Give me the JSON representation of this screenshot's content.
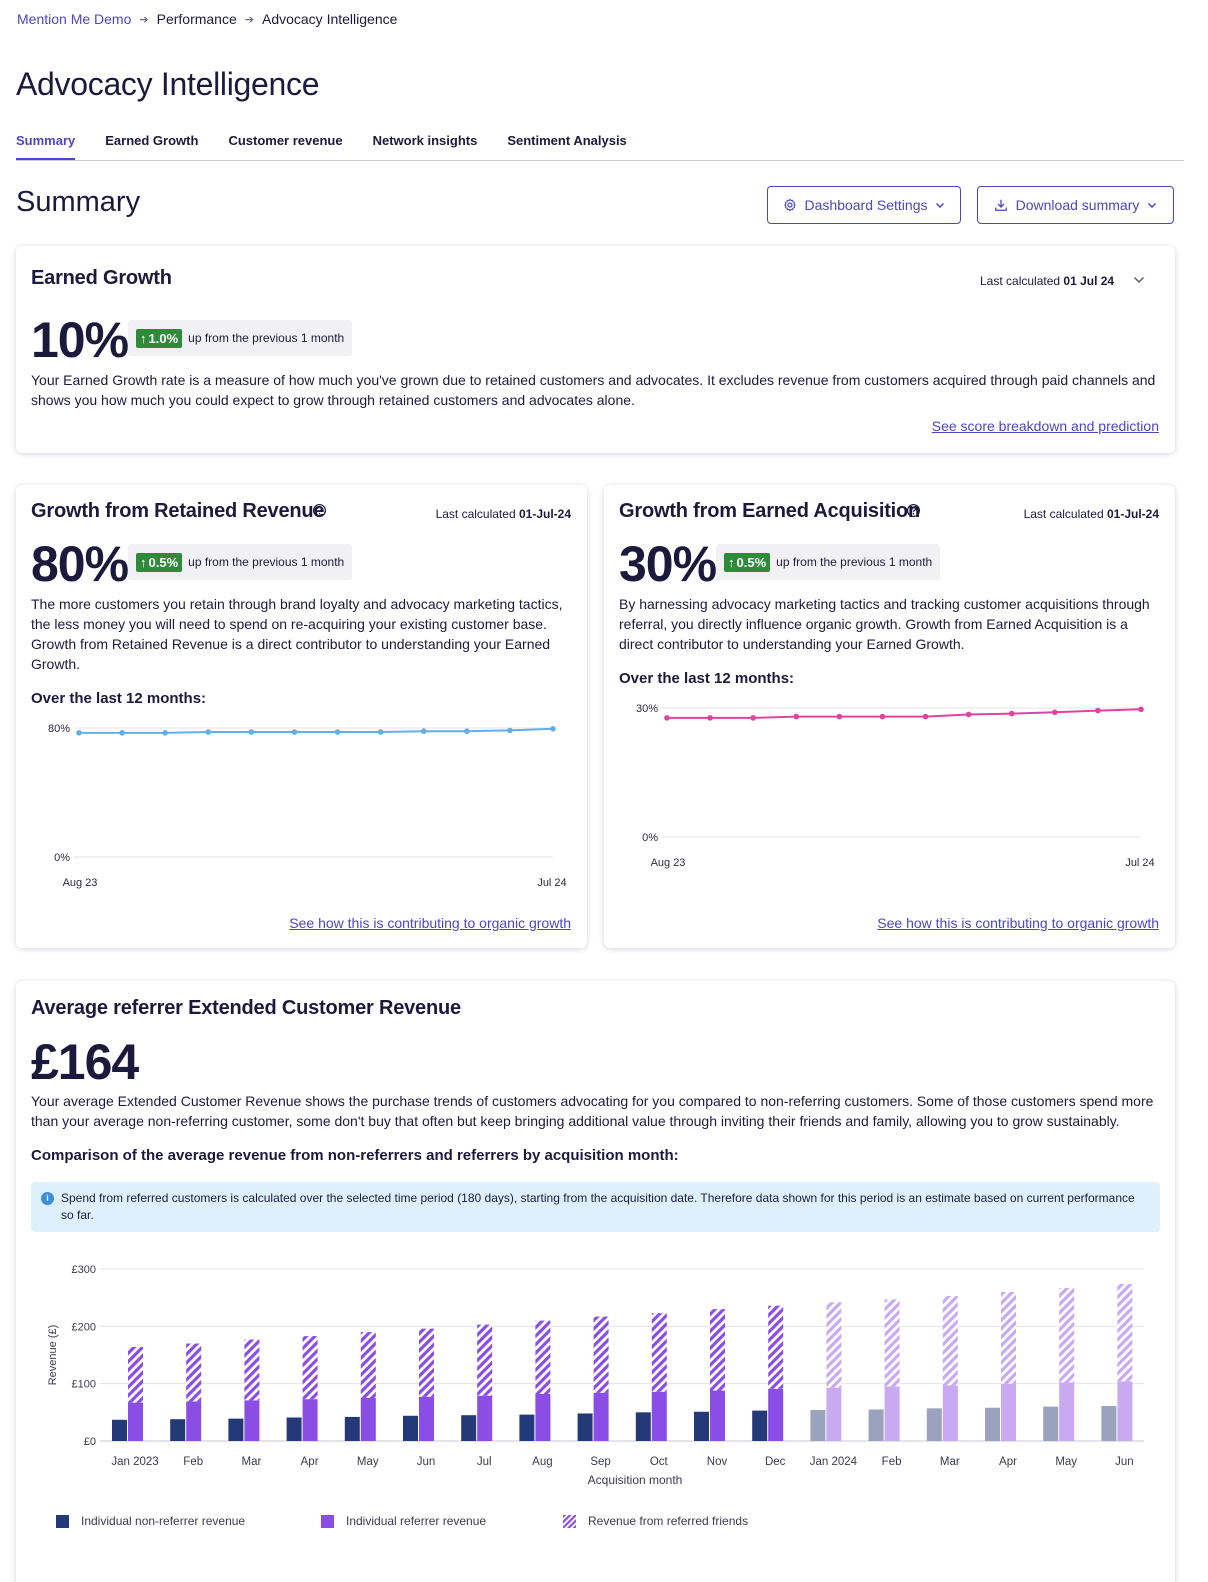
{
  "breadcrumb": {
    "root": "Mention Me Demo",
    "middle": "Performance",
    "current": "Advocacy Intelligence"
  },
  "page_title": "Advocacy Intelligence",
  "tabs": [
    "Summary",
    "Earned Growth",
    "Customer revenue",
    "Network insights",
    "Sentiment Analysis"
  ],
  "section_title": "Summary",
  "buttons": {
    "settings": "Dashboard Settings",
    "download": "Download summary"
  },
  "earned": {
    "title": "Earned Growth",
    "last_calc_label": "Last calculated",
    "last_calc_date": "01 Jul 24",
    "value": "10%",
    "change": "1.0%",
    "change_text": "up from the previous 1 month",
    "description": "Your Earned Growth rate is a measure of how much you've grown due to retained customers and advocates. It excludes revenue from customers acquired through paid channels and shows you how much you could expect to grow through retained customers and advocates alone.",
    "link": "See score breakdown and prediction"
  },
  "retained": {
    "title": "Growth from Retained Revenue",
    "last_calc_label": "Last calculated",
    "last_calc_date": "01-Jul-24",
    "value": "80%",
    "change": "0.5%",
    "change_text": "up from the previous 1 month",
    "description": "The more customers you retain through brand loyalty and advocacy marketing tactics, the less money you will need to spend on re-acquiring your existing customer base. Growth from Retained Revenue is a direct contributor to understanding your Earned Growth.",
    "over": "Over the last 12 months:",
    "link": "See how this is contributing to organic growth"
  },
  "acquisition": {
    "title": "Growth from Earned Acquisition",
    "last_calc_label": "Last calculated",
    "last_calc_date": "01-Jul-24",
    "value": "30%",
    "change": "0.5%",
    "change_text": "up from the previous 1 month",
    "description": "By harnessing advocacy marketing tactics and tracking customer acquisitions through referral, you directly influence organic growth. Growth from Earned Acquisition is a direct contributor to understanding your Earned Growth.",
    "over": "Over the last 12 months:",
    "link": "See how this is contributing to organic growth"
  },
  "revenue": {
    "title": "Average referrer Extended Customer Revenue",
    "value": "£164",
    "description": "Your average Extended Customer Revenue shows the purchase trends of customers advocating for you compared to non-referring customers. Some of those customers spend more than your average non-referring customer, some don't buy that often but keep bringing additional value through inviting their friends and family, allowing you to grow sustainably.",
    "comparison": "Comparison of the average revenue from non-referrers and referrers by acquisition month:",
    "info": "Spend from referred customers is calculated over the selected time period (180 days), starting from the acquisition date. Therefore data shown for this period is an estimate based on current performance so far."
  },
  "colors": {
    "accent": "#4b46c4",
    "retained_line": "#64aee8",
    "acquisition_line": "#e0439f",
    "non_referrer": "#243a78",
    "referrer": "#8a4ee6",
    "positive": "#2f8a3a"
  },
  "chart_data": [
    {
      "type": "line",
      "name": "retained",
      "x": [
        "Aug 23",
        "Sep 23",
        "Oct 23",
        "Nov 23",
        "Dec 23",
        "Jan 24",
        "Feb 24",
        "Mar 24",
        "Apr 24",
        "May 24",
        "Jun 24",
        "Jul 24"
      ],
      "values": [
        77.0,
        77.0,
        77.0,
        77.5,
        77.5,
        77.5,
        77.5,
        77.5,
        78.0,
        78.0,
        78.5,
        79.5
      ],
      "xticks": [
        "Aug 23",
        "Jul 24"
      ],
      "yticks": [
        "80%",
        "0%"
      ],
      "ylim": [
        0,
        80
      ]
    },
    {
      "type": "line",
      "name": "acquisition",
      "x": [
        "Aug 23",
        "Sep 23",
        "Oct 23",
        "Nov 23",
        "Dec 23",
        "Jan 24",
        "Feb 24",
        "Mar 24",
        "Apr 24",
        "May 24",
        "Jun 24",
        "Jul 24"
      ],
      "values": [
        27.7,
        27.7,
        27.7,
        28.0,
        28.0,
        28.0,
        28.0,
        28.5,
        28.7,
        29.0,
        29.4,
        29.7
      ],
      "xticks": [
        "Aug 23",
        "Jul 24"
      ],
      "yticks": [
        "30%",
        "0%"
      ],
      "ylim": [
        0,
        30
      ]
    },
    {
      "type": "bar",
      "categories": [
        "Jan 2023",
        "Feb",
        "Mar",
        "Apr",
        "May",
        "Jun",
        "Jul",
        "Aug",
        "Sep",
        "Oct",
        "Nov",
        "Dec",
        "Jan 2024",
        "Feb",
        "Mar",
        "Apr",
        "May",
        "Jun"
      ],
      "estimated_from_index": 12,
      "series": [
        {
          "name": "Individual non-referrer revenue",
          "values": [
            37,
            38,
            39,
            41,
            42,
            44,
            45,
            46,
            48,
            50,
            51,
            53,
            54,
            55,
            57,
            58,
            60,
            61
          ]
        },
        {
          "name": "Individual referrer revenue",
          "values": [
            67,
            69,
            71,
            73,
            75,
            77,
            79,
            82,
            84,
            86,
            88,
            91,
            93,
            95,
            97,
            100,
            102,
            104
          ]
        },
        {
          "name": "Revenue from referred friends",
          "values": [
            97,
            101,
            106,
            110,
            115,
            119,
            124,
            128,
            133,
            137,
            142,
            145,
            149,
            152,
            156,
            160,
            165,
            170
          ]
        }
      ],
      "ylabel": "Revenue (£)",
      "xlabel": "Acquisition month",
      "yticks": [
        "£300",
        "£200",
        "£100",
        "£0"
      ],
      "ylim": [
        0,
        300
      ]
    }
  ]
}
